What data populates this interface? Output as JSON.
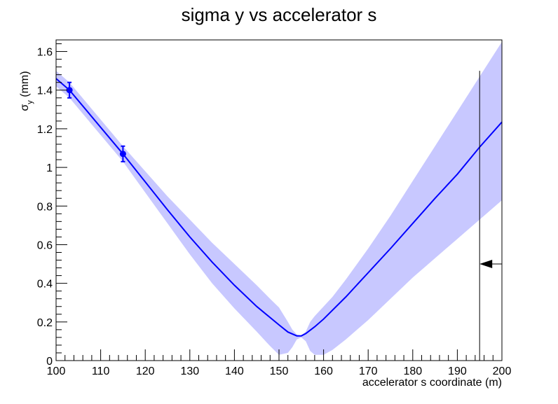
{
  "chart_data": {
    "type": "line",
    "title": "sigma y vs accelerator s",
    "xlabel": "accelerator s coordinate (m)",
    "ylabel": {
      "main": "σ",
      "sub": "y",
      "unit": " (mm)"
    },
    "xlim": [
      100,
      200
    ],
    "ylim": [
      0,
      1.66
    ],
    "x_ticks": [
      "100",
      "110",
      "120",
      "130",
      "140",
      "150",
      "160",
      "170",
      "180",
      "190",
      "200"
    ],
    "y_ticks": [
      "0",
      "0.2",
      "0.4",
      "0.6",
      "0.8",
      "1",
      "1.2",
      "1.4",
      "1.6"
    ],
    "grid": false,
    "colors": {
      "line": "#0000ff",
      "band": "#c8c8ff",
      "marker": "#0000ff",
      "arrow": "#000000"
    },
    "fit_curve": {
      "x": [
        100,
        103,
        115,
        120,
        125,
        130,
        135,
        140,
        145,
        150,
        152,
        154,
        155,
        156,
        158,
        160,
        165,
        170,
        175,
        180,
        185,
        190,
        195,
        200
      ],
      "y": [
        1.46,
        1.4,
        1.07,
        0.925,
        0.78,
        0.64,
        0.51,
        0.39,
        0.28,
        0.185,
        0.148,
        0.128,
        0.128,
        0.14,
        0.175,
        0.215,
        0.33,
        0.455,
        0.58,
        0.71,
        0.84,
        0.965,
        1.105,
        1.235
      ]
    },
    "error_band": {
      "x": [
        100,
        103,
        115,
        120,
        125,
        130,
        135,
        140,
        145,
        148,
        150,
        152,
        153,
        154,
        155,
        156,
        157,
        158,
        160,
        162,
        165,
        170,
        175,
        180,
        185,
        190,
        195,
        200
      ],
      "upper": [
        1.5,
        1.44,
        1.11,
        0.98,
        0.85,
        0.73,
        0.61,
        0.5,
        0.39,
        0.32,
        0.275,
        0.2,
        0.16,
        0.135,
        0.13,
        0.15,
        0.2,
        0.23,
        0.28,
        0.33,
        0.42,
        0.58,
        0.75,
        0.93,
        1.11,
        1.29,
        1.47,
        1.65
      ],
      "lower": [
        1.42,
        1.36,
        1.03,
        0.87,
        0.71,
        0.55,
        0.4,
        0.27,
        0.15,
        0.075,
        0.03,
        0.04,
        0.07,
        0.11,
        0.12,
        0.1,
        0.05,
        0.03,
        0.03,
        0.055,
        0.11,
        0.21,
        0.32,
        0.43,
        0.53,
        0.63,
        0.73,
        0.83
      ]
    },
    "points": [
      {
        "x": 103,
        "y": 1.4,
        "err": 0.04
      },
      {
        "x": 115,
        "y": 1.07,
        "err": 0.04
      }
    ],
    "marker_line": {
      "x": 195,
      "y_top": 1.5
    },
    "arrow": {
      "y": 0.5,
      "from_x": 200,
      "to_x": 195
    }
  }
}
